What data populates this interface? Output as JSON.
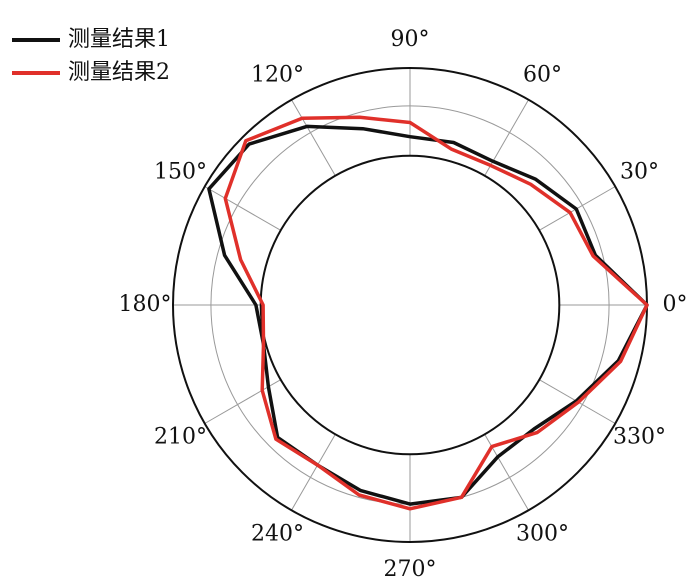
{
  "chart_data": {
    "type": "polar",
    "theta": [
      0,
      15,
      30,
      45,
      60,
      75,
      90,
      105,
      120,
      135,
      150,
      165,
      180,
      195,
      210,
      225,
      240,
      255,
      270,
      285,
      300,
      315,
      330,
      345
    ],
    "series": [
      {
        "name": "测量结果1",
        "color": "#111111",
        "values": [
          1.0,
          0.81,
          0.81,
          0.75,
          0.7,
          0.71,
          0.71,
          0.77,
          0.87,
          0.96,
          0.98,
          0.81,
          0.65,
          0.64,
          0.69,
          0.79,
          0.78,
          0.81,
          0.84,
          0.84,
          0.74,
          0.74,
          0.81,
          0.91
        ]
      },
      {
        "name": "测量结果2",
        "color": "#e0302a",
        "values": [
          1.0,
          0.8,
          0.78,
          0.72,
          0.68,
          0.68,
          0.77,
          0.82,
          0.91,
          0.98,
          0.9,
          0.74,
          0.62,
          0.64,
          0.72,
          0.8,
          0.78,
          0.83,
          0.86,
          0.84,
          0.69,
          0.76,
          0.82,
          0.92
        ]
      }
    ],
    "rlim": [
      0,
      1.0
    ],
    "rticks": [
      0.63,
      0.84
    ],
    "thetaticks": [
      {
        "value": 0,
        "label": "0°"
      },
      {
        "value": 30,
        "label": "30°"
      },
      {
        "value": 60,
        "label": "60°"
      },
      {
        "value": 90,
        "label": "90°"
      },
      {
        "value": 120,
        "label": "120°"
      },
      {
        "value": 150,
        "label": "150°"
      },
      {
        "value": 180,
        "label": "180°"
      },
      {
        "value": 210,
        "label": "210°"
      },
      {
        "value": 240,
        "label": "240°"
      },
      {
        "value": 270,
        "label": "270°"
      },
      {
        "value": 300,
        "label": "300°"
      },
      {
        "value": 330,
        "label": "330°"
      }
    ],
    "legend": "upper-left"
  }
}
